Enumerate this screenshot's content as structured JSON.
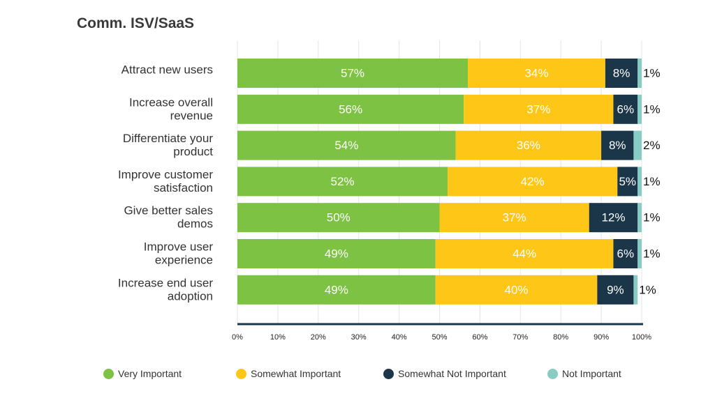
{
  "chart_data": {
    "type": "bar",
    "orientation": "horizontal",
    "stacked": true,
    "title": "Comm. ISV/SaaS",
    "categories": [
      [
        "Attract new users"
      ],
      [
        "Increase overall",
        "revenue"
      ],
      [
        "Differentiate your",
        "product"
      ],
      [
        "Improve customer",
        "satisfaction"
      ],
      [
        "Give better sales",
        "demos"
      ],
      [
        "Improve user",
        "experience"
      ],
      [
        "Increase end user",
        "adoption"
      ]
    ],
    "series": [
      {
        "name": "Very Important",
        "color": "#7dc242",
        "label_color": "#ffffff",
        "values": [
          57,
          56,
          54,
          52,
          50,
          49,
          49
        ]
      },
      {
        "name": "Somewhat Important",
        "color": "#fec616",
        "label_color": "#ffffff",
        "values": [
          34,
          37,
          36,
          42,
          37,
          44,
          40
        ]
      },
      {
        "name": "Somewhat Not Important",
        "color": "#1b3549",
        "label_color": "#ffffff",
        "values": [
          8,
          6,
          8,
          5,
          12,
          6,
          9
        ]
      },
      {
        "name": "Not Important",
        "color": "#88cdc4",
        "label_color": "#111111",
        "values": [
          1,
          1,
          2,
          1,
          1,
          1,
          1
        ]
      }
    ],
    "value_suffix": "%",
    "xlim": [
      0,
      100
    ],
    "x_ticks": [
      "0%",
      "10%",
      "20%",
      "30%",
      "40%",
      "50%",
      "60%",
      "70%",
      "80%",
      "90%",
      "100%"
    ],
    "grid": true,
    "legend_position": "bottom"
  }
}
